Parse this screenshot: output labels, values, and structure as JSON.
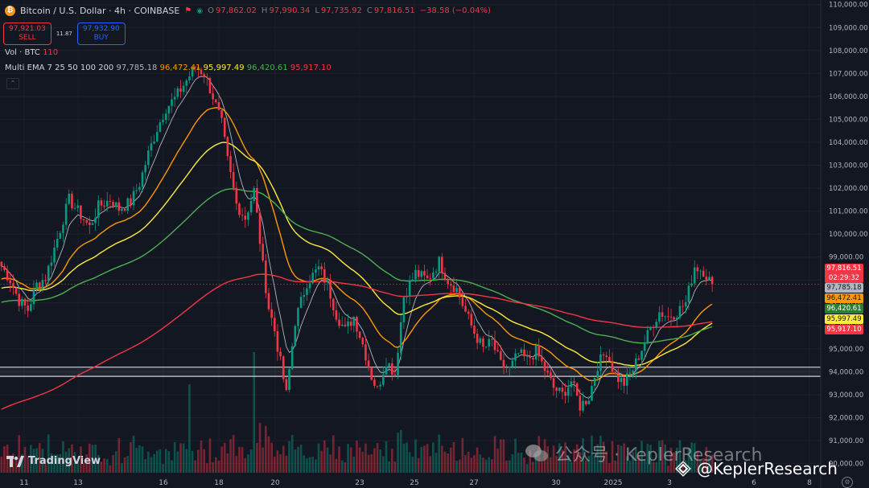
{
  "header": {
    "symbol": "Bitcoin / U.S. Dollar · 4h · COINBASE",
    "ohlc": {
      "o_label": "O",
      "o": "97,862.02",
      "h_label": "H",
      "h": "97,990.34",
      "l_label": "L",
      "l": "97,735.92",
      "c_label": "C",
      "c": "97,816.51",
      "change": "−38.58 (−0.04%)"
    },
    "sell_price": "97,921.03",
    "sell_label": "SELL",
    "spread": "11.87",
    "buy_price": "97,932.90",
    "buy_label": "BUY"
  },
  "indicators": {
    "vol_label": "Vol · BTC",
    "vol_value": "110",
    "ema_label": "Multi EMA 7 25 50 100 200",
    "ema_values": [
      "97,785.18",
      "96,472.41",
      "95,997.49",
      "96,420.61",
      "95,917.10"
    ]
  },
  "price_labels": {
    "last_price": "97,816.51",
    "countdown": "02:29:32",
    "ema7": "97,785.18",
    "ema25": "96,472.41",
    "ema100": "96,420.61",
    "ema50": "95,997.49",
    "ema200": "95,917.10"
  },
  "watermarks": {
    "tradingview": "TradingView",
    "wechat": "公众号 · KeplerResearch",
    "binance": "@KeplerResearch"
  },
  "colors": {
    "background": "#131722",
    "up": "#089981",
    "down": "#f23645",
    "ema7": "#b2b5be",
    "ema25": "#ff9800",
    "ema50": "#ffeb3b",
    "ema100": "#4caf50",
    "ema200": "#f23645"
  },
  "chart_data": {
    "type": "candlestick",
    "title": "Bitcoin / U.S. Dollar · 4h · COINBASE",
    "y_axis": {
      "ticks": [
        "110,000.00",
        "109,000.00",
        "108,000.00",
        "107,000.00",
        "106,000.00",
        "105,000.00",
        "104,000.00",
        "103,000.00",
        "102,000.00",
        "101,000.00",
        "100,000.00",
        "99,000.00",
        "98,000.00",
        "97,000.00",
        "96,000.00",
        "95,000.00",
        "94,000.00",
        "93,000.00",
        "92,000.00",
        "91,000.00",
        "90,000.00"
      ],
      "range": [
        89600,
        110200
      ]
    },
    "x_axis": {
      "ticks": [
        "11",
        "13",
        "16",
        "18",
        "20",
        "23",
        "25",
        "27",
        "30",
        "2025",
        "3",
        "6",
        "8"
      ]
    },
    "horizontal_lines": [
      94200,
      93800
    ],
    "dashed_line": 97816.51,
    "anchors": [
      [
        0,
        98600
      ],
      [
        3,
        98000
      ],
      [
        6,
        97100
      ],
      [
        9,
        96700
      ],
      [
        12,
        97800
      ],
      [
        15,
        98100
      ],
      [
        19,
        99800
      ],
      [
        23,
        101500
      ],
      [
        26,
        101000
      ],
      [
        30,
        100300
      ],
      [
        33,
        101200
      ],
      [
        37,
        101500
      ],
      [
        40,
        101100
      ],
      [
        44,
        101400
      ],
      [
        47,
        102200
      ],
      [
        50,
        103500
      ],
      [
        53,
        104600
      ],
      [
        56,
        105500
      ],
      [
        59,
        105900
      ],
      [
        63,
        106700
      ],
      [
        66,
        107300
      ],
      [
        69,
        107000
      ],
      [
        72,
        106000
      ],
      [
        75,
        104800
      ],
      [
        77,
        103200
      ],
      [
        80,
        101300
      ],
      [
        83,
        100700
      ],
      [
        86,
        101900
      ],
      [
        89,
        98600
      ],
      [
        91,
        96800
      ],
      [
        93,
        95800
      ],
      [
        95,
        94400
      ],
      [
        97,
        93000
      ],
      [
        100,
        96200
      ],
      [
        104,
        97900
      ],
      [
        108,
        98500
      ],
      [
        111,
        97800
      ],
      [
        114,
        96500
      ],
      [
        117,
        95800
      ],
      [
        120,
        96400
      ],
      [
        123,
        95200
      ],
      [
        126,
        93800
      ],
      [
        128,
        93200
      ],
      [
        131,
        94500
      ],
      [
        134,
        93900
      ],
      [
        137,
        97300
      ],
      [
        141,
        98300
      ],
      [
        145,
        98000
      ],
      [
        149,
        98800
      ],
      [
        152,
        98000
      ],
      [
        155,
        97600
      ],
      [
        158,
        96600
      ],
      [
        161,
        95700
      ],
      [
        164,
        95000
      ],
      [
        167,
        95300
      ],
      [
        170,
        94300
      ],
      [
        173,
        94100
      ],
      [
        176,
        94800
      ],
      [
        179,
        94500
      ],
      [
        182,
        94900
      ],
      [
        185,
        94100
      ],
      [
        188,
        93300
      ],
      [
        191,
        93000
      ],
      [
        194,
        93600
      ],
      [
        197,
        92500
      ],
      [
        200,
        92900
      ],
      [
        203,
        94300
      ],
      [
        206,
        94900
      ],
      [
        209,
        93800
      ],
      [
        212,
        93500
      ],
      [
        215,
        94100
      ],
      [
        218,
        95000
      ],
      [
        221,
        95900
      ],
      [
        224,
        96600
      ],
      [
        227,
        96400
      ],
      [
        230,
        96600
      ],
      [
        233,
        97000
      ],
      [
        236,
        98600
      ],
      [
        239,
        98400
      ],
      [
        242,
        97816
      ]
    ],
    "ema_periods": [
      7,
      25,
      50,
      100,
      200
    ],
    "series": [
      {
        "name": "Multi EMA 7",
        "last": 97785.18
      },
      {
        "name": "Multi EMA 25",
        "last": 96472.41
      },
      {
        "name": "Multi EMA 50",
        "last": 95997.49
      },
      {
        "name": "Multi EMA 100",
        "last": 96420.61
      },
      {
        "name": "Multi EMA 200",
        "last": 95917.1
      }
    ]
  }
}
